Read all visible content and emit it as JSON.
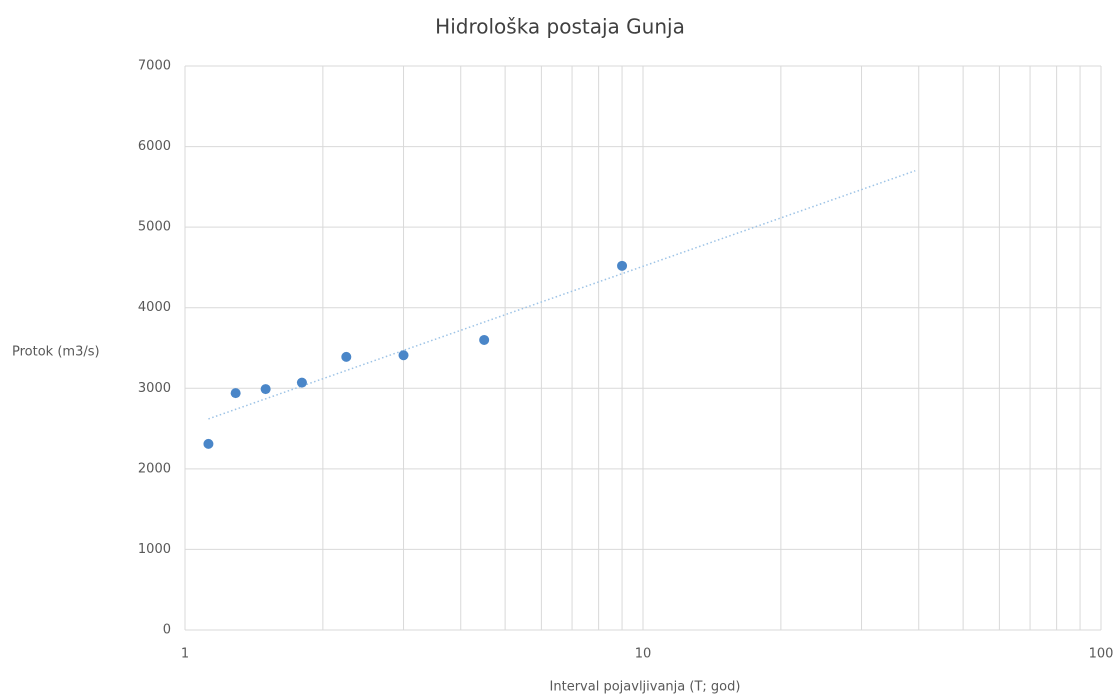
{
  "chart_data": {
    "type": "scatter",
    "title": "Hidrološka postaja Gunja",
    "x_label": "Interval pojavljivanja (T; god)",
    "y_label": "Protok (m3/s)",
    "x": [
      1.125,
      1.29,
      1.5,
      1.8,
      2.25,
      3,
      4.5,
      9
    ],
    "values": [
      2310,
      2940,
      2990,
      3070,
      3390,
      3410,
      3600,
      4520
    ],
    "color": "#4a86c8",
    "trendline": {
      "x": [
        1.125,
        39.3
      ],
      "values": [
        2620,
        5700
      ],
      "color": "#9dc3e6"
    },
    "xscale": "log",
    "xlim": [
      1,
      100
    ],
    "xticks": [
      1,
      10,
      100
    ],
    "ylim": [
      0,
      7000
    ],
    "yticks": [
      0,
      1000,
      2000,
      3000,
      4000,
      5000,
      6000,
      7000
    ],
    "grid": true
  }
}
